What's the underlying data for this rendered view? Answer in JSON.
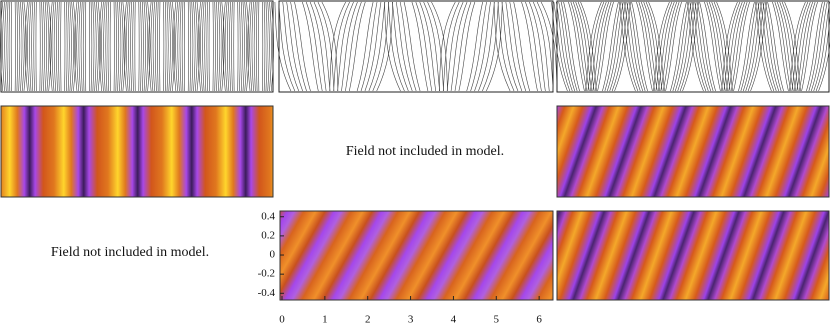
{
  "notes": [
    "Field not included in model.",
    "Field not included in model."
  ],
  "axis": {
    "xlim": [
      0,
      6.3
    ],
    "xticks": [
      0,
      1,
      2,
      3,
      4,
      5,
      6
    ],
    "ylim": [
      -0.47,
      0.46
    ],
    "yticks": [
      0.4,
      0.2,
      0,
      -0.2,
      -0.4
    ]
  }
}
